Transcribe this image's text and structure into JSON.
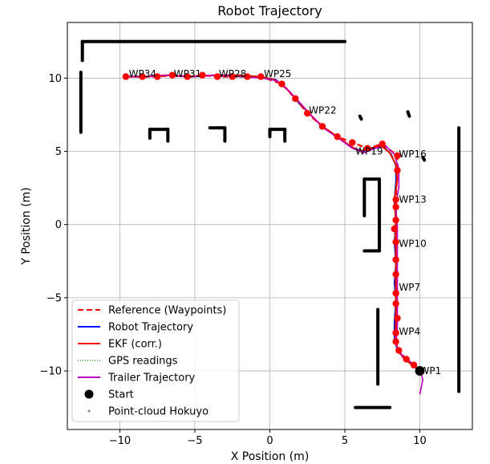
{
  "chart_data": {
    "type": "line",
    "title": "Robot Trajectory",
    "xlabel": "X Position (m)",
    "ylabel": "Y Position (m)",
    "xlim": [
      -13.5,
      13.5
    ],
    "ylim": [
      -14.0,
      13.8
    ],
    "xticks": [
      -10,
      -5,
      0,
      5,
      10
    ],
    "yticks": [
      -10,
      -5,
      0,
      5,
      10
    ],
    "grid": true,
    "legend_position": "lower-left",
    "legend": [
      {
        "label": "Reference (Waypoints)",
        "style": "dashed",
        "color": "#ff0000"
      },
      {
        "label": "Robot Trajectory",
        "style": "solid",
        "color": "#0000ff"
      },
      {
        "label": "EKF (corr.)",
        "style": "solid",
        "color": "#ff0000"
      },
      {
        "label": "GPS readings",
        "style": "dotted",
        "color": "#008000"
      },
      {
        "label": "Trailer Trajectory",
        "style": "solid",
        "color": "#bf00bf"
      },
      {
        "label": "Start",
        "style": "marker-circle",
        "color": "#000000"
      },
      {
        "label": "Point-cloud Hokuyo",
        "style": "marker-dot",
        "color": "#808080"
      }
    ],
    "waypoints": [
      [
        10.0,
        -10.0
      ],
      [
        9.6,
        -9.6
      ],
      [
        9.1,
        -9.2
      ],
      [
        8.6,
        -8.6
      ],
      [
        8.4,
        -8.0
      ],
      [
        8.4,
        -7.4
      ],
      [
        8.5,
        -6.4
      ],
      [
        8.4,
        -5.4
      ],
      [
        8.4,
        -4.7
      ],
      [
        8.4,
        -3.4
      ],
      [
        8.4,
        -2.4
      ],
      [
        8.4,
        -1.2
      ],
      [
        8.3,
        -0.3
      ],
      [
        8.4,
        0.3
      ],
      [
        8.4,
        1.2
      ],
      [
        8.4,
        1.7
      ],
      [
        8.5,
        3.7
      ],
      [
        8.5,
        4.7
      ],
      [
        7.5,
        5.5
      ],
      [
        6.5,
        5.2
      ],
      [
        5.5,
        5.6
      ],
      [
        4.5,
        6.0
      ],
      [
        3.5,
        6.7
      ],
      [
        2.5,
        7.6
      ],
      [
        1.7,
        8.6
      ],
      [
        0.8,
        9.6
      ],
      [
        -0.6,
        10.1
      ],
      [
        -1.5,
        10.1
      ],
      [
        -2.5,
        10.1
      ],
      [
        -3.5,
        10.1
      ],
      [
        -4.5,
        10.2
      ],
      [
        -5.5,
        10.1
      ],
      [
        -6.5,
        10.2
      ],
      [
        -7.5,
        10.1
      ],
      [
        -8.5,
        10.1
      ],
      [
        -9.6,
        10.1
      ]
    ],
    "waypoint_labels": [
      {
        "text": "WP1",
        "x": 10.0,
        "y": -10.0
      },
      {
        "text": "WP4",
        "x": 8.6,
        "y": -7.3
      },
      {
        "text": "WP7",
        "x": 8.6,
        "y": -4.3
      },
      {
        "text": "WP10",
        "x": 8.6,
        "y": -1.3
      },
      {
        "text": "WP13",
        "x": 8.6,
        "y": 1.7
      },
      {
        "text": "WP16",
        "x": 8.6,
        "y": 4.8
      },
      {
        "text": "WP19",
        "x": 5.7,
        "y": 5.0
      },
      {
        "text": "WP22",
        "x": 2.6,
        "y": 7.8
      },
      {
        "text": "WP25",
        "x": -0.4,
        "y": 10.3
      },
      {
        "text": "WP28",
        "x": -3.4,
        "y": 10.3
      },
      {
        "text": "WP31",
        "x": -6.4,
        "y": 10.3
      },
      {
        "text": "WP34",
        "x": -9.4,
        "y": 10.3
      }
    ],
    "robot_trajectory": [
      [
        10.0,
        -10.0
      ],
      [
        9.6,
        -9.7
      ],
      [
        9.0,
        -9.2
      ],
      [
        8.5,
        -8.6
      ],
      [
        8.3,
        -7.8
      ],
      [
        8.3,
        -6.6
      ],
      [
        8.4,
        -5.2
      ],
      [
        8.3,
        -4.0
      ],
      [
        8.4,
        -2.6
      ],
      [
        8.3,
        -1.2
      ],
      [
        8.4,
        0.2
      ],
      [
        8.3,
        1.6
      ],
      [
        8.4,
        3.0
      ],
      [
        8.4,
        4.0
      ],
      [
        8.1,
        4.8
      ],
      [
        7.6,
        5.3
      ],
      [
        6.9,
        5.2
      ],
      [
        6.2,
        5.0
      ],
      [
        5.4,
        5.3
      ],
      [
        4.6,
        5.9
      ],
      [
        3.6,
        6.6
      ],
      [
        2.8,
        7.4
      ],
      [
        2.0,
        8.2
      ],
      [
        1.2,
        9.2
      ],
      [
        0.4,
        9.9
      ],
      [
        -0.6,
        10.1
      ],
      [
        -2.0,
        10.2
      ],
      [
        -3.6,
        10.2
      ],
      [
        -5.2,
        10.1
      ],
      [
        -6.8,
        10.2
      ],
      [
        -8.2,
        10.1
      ],
      [
        -9.6,
        10.1
      ]
    ],
    "ekf_corrected": [
      [
        10.0,
        -10.0
      ],
      [
        9.5,
        -9.6
      ],
      [
        8.9,
        -9.1
      ],
      [
        8.5,
        -8.5
      ],
      [
        8.4,
        -7.6
      ],
      [
        8.4,
        -6.4
      ],
      [
        8.4,
        -5.0
      ],
      [
        8.4,
        -3.8
      ],
      [
        8.4,
        -2.5
      ],
      [
        8.4,
        -1.1
      ],
      [
        8.4,
        0.3
      ],
      [
        8.3,
        1.7
      ],
      [
        8.5,
        3.1
      ],
      [
        8.4,
        4.1
      ],
      [
        8.0,
        4.9
      ],
      [
        7.4,
        5.4
      ],
      [
        6.7,
        5.2
      ],
      [
        6.0,
        5.0
      ],
      [
        5.3,
        5.4
      ],
      [
        4.5,
        6.0
      ],
      [
        3.5,
        6.7
      ],
      [
        2.7,
        7.5
      ],
      [
        1.9,
        8.4
      ],
      [
        1.1,
        9.3
      ],
      [
        0.3,
        9.9
      ],
      [
        -0.7,
        10.1
      ],
      [
        -2.1,
        10.2
      ],
      [
        -3.7,
        10.2
      ],
      [
        -5.3,
        10.1
      ],
      [
        -6.9,
        10.2
      ],
      [
        -8.3,
        10.1
      ],
      [
        -9.6,
        10.1
      ]
    ],
    "trailer_trajectory": [
      [
        10.0,
        -11.6
      ],
      [
        10.2,
        -10.6
      ],
      [
        10.0,
        -9.9
      ],
      [
        9.4,
        -9.4
      ],
      [
        8.8,
        -8.9
      ],
      [
        8.4,
        -8.2
      ],
      [
        8.5,
        -7.2
      ],
      [
        8.5,
        -5.8
      ],
      [
        8.5,
        -4.4
      ],
      [
        8.5,
        -3.0
      ],
      [
        8.5,
        -1.6
      ],
      [
        8.5,
        -0.2
      ],
      [
        8.4,
        1.2
      ],
      [
        8.6,
        2.6
      ],
      [
        8.6,
        3.8
      ],
      [
        8.3,
        4.8
      ],
      [
        7.7,
        5.4
      ],
      [
        7.0,
        5.2
      ],
      [
        6.3,
        4.9
      ],
      [
        5.5,
        5.2
      ],
      [
        4.7,
        5.8
      ],
      [
        3.7,
        6.5
      ],
      [
        2.9,
        7.3
      ],
      [
        2.1,
        8.2
      ],
      [
        1.3,
        9.1
      ],
      [
        0.5,
        9.8
      ],
      [
        -0.5,
        10.0
      ],
      [
        -2.0,
        10.1
      ],
      [
        -3.6,
        10.2
      ],
      [
        -5.2,
        10.1
      ],
      [
        -6.8,
        10.2
      ],
      [
        -8.2,
        10.1
      ],
      [
        -9.6,
        10.1
      ]
    ],
    "start": [
      10.0,
      -10.0
    ],
    "point_cloud_segments": [
      [
        [
          -12.5,
          12.5
        ],
        [
          5.0,
          12.5
        ]
      ],
      [
        [
          -12.5,
          12.5
        ],
        [
          -12.5,
          11.2
        ]
      ],
      [
        [
          -12.6,
          10.4
        ],
        [
          -12.6,
          6.3
        ]
      ],
      [
        [
          -8.0,
          6.5
        ],
        [
          -6.8,
          6.5
        ]
      ],
      [
        [
          -6.8,
          6.5
        ],
        [
          -6.8,
          5.7
        ]
      ],
      [
        [
          -8.0,
          6.5
        ],
        [
          -8.0,
          5.9
        ]
      ],
      [
        [
          -4.0,
          6.6
        ],
        [
          -3.0,
          6.6
        ]
      ],
      [
        [
          -3.0,
          6.6
        ],
        [
          -3.0,
          5.7
        ]
      ],
      [
        [
          0.0,
          6.5
        ],
        [
          1.0,
          6.5
        ]
      ],
      [
        [
          1.0,
          6.5
        ],
        [
          1.0,
          5.7
        ]
      ],
      [
        [
          0.0,
          6.5
        ],
        [
          0.0,
          6.0
        ]
      ],
      [
        [
          6.3,
          3.1
        ],
        [
          7.3,
          3.1
        ]
      ],
      [
        [
          7.3,
          3.1
        ],
        [
          7.3,
          -1.8
        ]
      ],
      [
        [
          6.3,
          -1.8
        ],
        [
          7.3,
          -1.8
        ]
      ],
      [
        [
          6.3,
          3.1
        ],
        [
          6.3,
          0.6
        ]
      ],
      [
        [
          7.2,
          -5.8
        ],
        [
          7.2,
          -10.9
        ]
      ],
      [
        [
          5.7,
          -12.5
        ],
        [
          8.0,
          -12.5
        ]
      ],
      [
        [
          12.6,
          6.6
        ],
        [
          12.6,
          -11.4
        ]
      ],
      [
        [
          6.0,
          7.4
        ],
        [
          6.1,
          7.2
        ]
      ],
      [
        [
          9.2,
          7.7
        ],
        [
          9.3,
          7.4
        ]
      ],
      [
        [
          10.2,
          4.6
        ],
        [
          10.3,
          4.4
        ]
      ]
    ]
  }
}
